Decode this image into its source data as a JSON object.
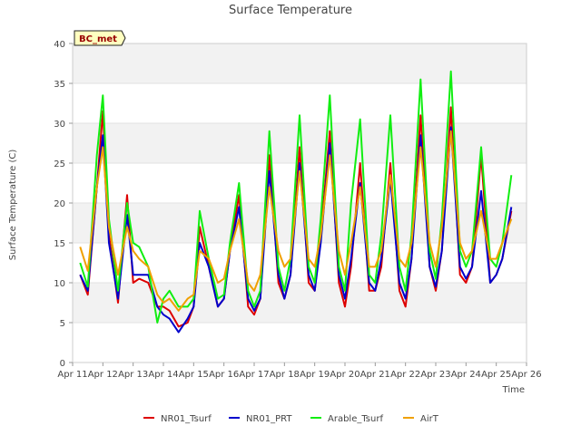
{
  "chart_data": {
    "type": "line",
    "title": "Surface Temperature",
    "xlabel": "Time",
    "ylabel": "Surface Temperature (C)",
    "ylim": [
      0,
      40
    ],
    "xlim": [
      0,
      15
    ],
    "x_unit": "days since Apr 11",
    "xtick_labels": [
      "Apr 11",
      "Apr 12",
      "Apr 13",
      "Apr 14",
      "Apr 15",
      "Apr 16",
      "Apr 17",
      "Apr 18",
      "Apr 19",
      "Apr 20",
      "Apr 21",
      "Apr 22",
      "Apr 23",
      "Apr 24",
      "Apr 25",
      "Apr 26"
    ],
    "yticks": [
      0,
      5,
      10,
      15,
      20,
      25,
      30,
      35,
      40
    ],
    "grid": "horizontal bands",
    "legend_position": "bottom",
    "annotation": "BC_met",
    "x": [
      0.25,
      0.5,
      0.8,
      1.0,
      1.2,
      1.5,
      1.8,
      2.0,
      2.2,
      2.5,
      2.8,
      3.0,
      3.2,
      3.5,
      3.8,
      4.0,
      4.2,
      4.5,
      4.8,
      5.0,
      5.2,
      5.5,
      5.8,
      6.0,
      6.2,
      6.5,
      6.8,
      7.0,
      7.2,
      7.5,
      7.8,
      8.0,
      8.2,
      8.5,
      8.8,
      9.0,
      9.2,
      9.5,
      9.8,
      10.0,
      10.2,
      10.5,
      10.8,
      11.0,
      11.2,
      11.5,
      11.8,
      12.0,
      12.2,
      12.5,
      12.8,
      13.0,
      13.2,
      13.5,
      13.8,
      14.0,
      14.2,
      14.5
    ],
    "series": [
      {
        "name": "NR01_Tsurf",
        "color": "#dd0000",
        "values": [
          11,
          8.5,
          22,
          31.5,
          16,
          7.5,
          21,
          10,
          10.5,
          10,
          7,
          7,
          6.5,
          4.5,
          5,
          7,
          17,
          12,
          7,
          8,
          14,
          21,
          7,
          6,
          8,
          26,
          10,
          8,
          11,
          27,
          10,
          9,
          16,
          29,
          10,
          7,
          12,
          25,
          9,
          9,
          12,
          25,
          9,
          7,
          13,
          31,
          12,
          9,
          14,
          32,
          11,
          10,
          12,
          26,
          10,
          11,
          13,
          19
        ]
      },
      {
        "name": "NR01_PRT",
        "color": "#0000cc",
        "values": [
          11,
          9,
          22,
          28.5,
          15,
          8,
          18.5,
          11,
          11,
          11,
          7,
          6,
          5.5,
          3.8,
          5.5,
          7,
          15,
          12,
          7,
          8,
          14,
          19.5,
          8,
          6.5,
          8,
          24,
          11,
          8,
          11,
          25,
          11,
          9,
          15,
          27.5,
          11,
          8,
          13,
          22.5,
          10,
          9,
          13,
          23,
          10,
          8,
          13,
          28.5,
          12,
          9.5,
          14,
          29.5,
          12,
          10.5,
          12,
          21.5,
          10,
          11,
          13,
          19.5
        ]
      },
      {
        "name": "Arable_Tsurf",
        "color": "#11ee11",
        "values": [
          12.5,
          9.5,
          26,
          33.5,
          18,
          9,
          20,
          15,
          14.5,
          12,
          5,
          8,
          9,
          7,
          7,
          8,
          19,
          13,
          8,
          8.5,
          15,
          22.5,
          9,
          7,
          9,
          29,
          12,
          9,
          13,
          31,
          12,
          10,
          18,
          33.5,
          12,
          9,
          20,
          30.5,
          11,
          10,
          16,
          31,
          12,
          9,
          16,
          35.5,
          14,
          10.5,
          18,
          36.5,
          14,
          12,
          14,
          27,
          13,
          12,
          15,
          23.5
        ]
      },
      {
        "name": "AirT",
        "color": "#f0a000",
        "values": [
          14.5,
          11.5,
          22,
          27,
          17,
          11,
          17,
          14,
          13,
          12,
          8.5,
          7.5,
          8,
          6.5,
          8,
          8.5,
          14,
          13,
          10,
          10.5,
          14,
          18,
          10,
          9,
          11,
          22,
          14,
          12,
          13,
          24,
          13,
          12,
          16,
          26,
          14,
          11,
          15,
          22,
          12,
          12,
          14,
          23.5,
          13,
          12,
          15,
          27,
          15,
          12,
          17,
          29,
          15,
          13,
          14,
          19,
          13,
          13,
          15,
          18
        ]
      }
    ]
  }
}
